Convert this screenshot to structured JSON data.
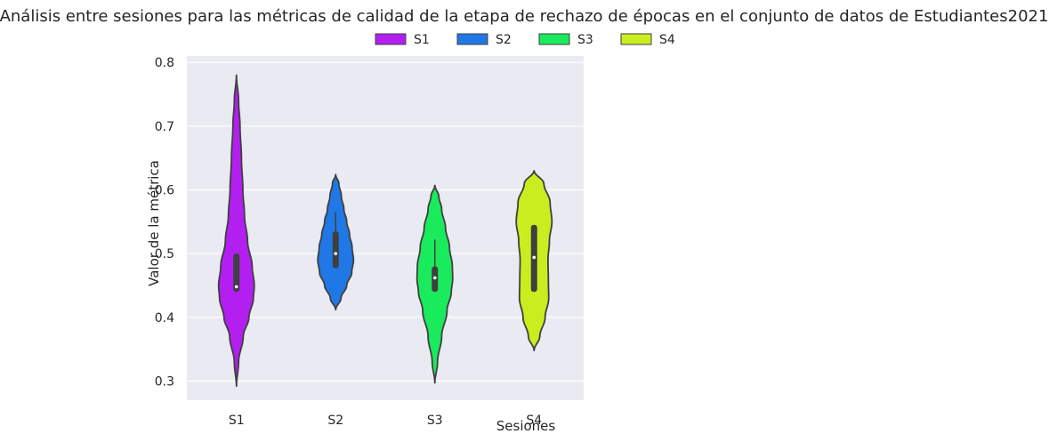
{
  "chart_data": {
    "type": "violin",
    "title": "Análisis entre sesiones para las métricas de calidad de la etapa de rechazo de épocas en el conjunto de datos de Estudiantes2021",
    "xlabel": "Sesiones",
    "ylabel": "Valor de la métrica",
    "categories": [
      "S1",
      "S2",
      "S3",
      "S4"
    ],
    "ylim": [
      0.27,
      0.81
    ],
    "yticks": [
      0.3,
      0.4,
      0.5,
      0.6,
      0.7,
      0.8
    ],
    "grid": true,
    "legend": {
      "placement": "top-center",
      "entries": [
        "S1",
        "S2",
        "S3",
        "S4"
      ]
    },
    "colors": [
      "#b31ff0",
      "#1f78e6",
      "#1aeb5c",
      "#c8ee1f"
    ],
    "series": [
      {
        "name": "S1",
        "min": 0.292,
        "max": 0.78,
        "q1": 0.44,
        "median": 0.448,
        "q3": 0.5,
        "whisker_low": 0.44,
        "whisker_high": 0.5,
        "density": [
          [
            0.292,
            0.0
          ],
          [
            0.33,
            0.12
          ],
          [
            0.37,
            0.38
          ],
          [
            0.4,
            0.7
          ],
          [
            0.43,
            0.95
          ],
          [
            0.45,
            1.0
          ],
          [
            0.48,
            0.88
          ],
          [
            0.52,
            0.62
          ],
          [
            0.56,
            0.45
          ],
          [
            0.6,
            0.36
          ],
          [
            0.65,
            0.28
          ],
          [
            0.7,
            0.2
          ],
          [
            0.74,
            0.12
          ],
          [
            0.78,
            0.0
          ]
        ]
      },
      {
        "name": "S2",
        "min": 0.412,
        "max": 0.624,
        "q1": 0.477,
        "median": 0.5,
        "q3": 0.535,
        "whisker_low": 0.477,
        "whisker_high": 0.565,
        "density": [
          [
            0.412,
            0.0
          ],
          [
            0.43,
            0.3
          ],
          [
            0.45,
            0.62
          ],
          [
            0.47,
            0.9
          ],
          [
            0.49,
            1.0
          ],
          [
            0.51,
            0.92
          ],
          [
            0.53,
            0.78
          ],
          [
            0.55,
            0.62
          ],
          [
            0.57,
            0.46
          ],
          [
            0.59,
            0.32
          ],
          [
            0.61,
            0.18
          ],
          [
            0.624,
            0.0
          ]
        ]
      },
      {
        "name": "S3",
        "min": 0.297,
        "max": 0.607,
        "q1": 0.44,
        "median": 0.462,
        "q3": 0.48,
        "whisker_low": 0.44,
        "whisker_high": 0.522,
        "density": [
          [
            0.297,
            0.0
          ],
          [
            0.33,
            0.15
          ],
          [
            0.37,
            0.38
          ],
          [
            0.41,
            0.68
          ],
          [
            0.44,
            0.92
          ],
          [
            0.46,
            1.0
          ],
          [
            0.48,
            0.98
          ],
          [
            0.51,
            0.82
          ],
          [
            0.54,
            0.6
          ],
          [
            0.57,
            0.38
          ],
          [
            0.59,
            0.22
          ],
          [
            0.607,
            0.0
          ]
        ]
      },
      {
        "name": "S4",
        "min": 0.348,
        "max": 0.63,
        "q1": 0.44,
        "median": 0.494,
        "q3": 0.545,
        "whisker_low": 0.44,
        "whisker_high": 0.545,
        "density": [
          [
            0.348,
            0.0
          ],
          [
            0.37,
            0.32
          ],
          [
            0.4,
            0.62
          ],
          [
            0.43,
            0.82
          ],
          [
            0.46,
            0.8
          ],
          [
            0.49,
            0.78
          ],
          [
            0.52,
            0.86
          ],
          [
            0.55,
            1.0
          ],
          [
            0.58,
            0.9
          ],
          [
            0.61,
            0.55
          ],
          [
            0.63,
            0.0
          ]
        ]
      }
    ]
  }
}
